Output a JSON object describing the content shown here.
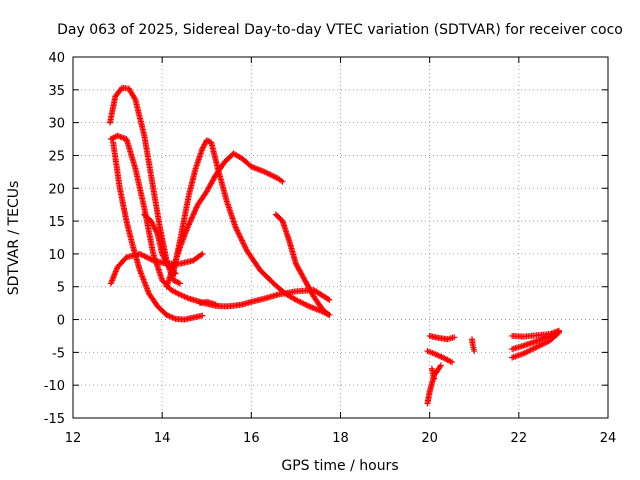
{
  "chart_data": {
    "type": "scatter",
    "title": "Day 063 of 2025, Sidereal Day-to-day VTEC variation (SDTVAR) for receiver coco",
    "xlabel": "GPS time / hours",
    "ylabel": "SDTVAR / TECUs",
    "xlim": [
      12,
      24
    ],
    "ylim": [
      -15,
      40
    ],
    "xticks": [
      12,
      14,
      16,
      18,
      20,
      22,
      24
    ],
    "yticks": [
      -15,
      -10,
      -5,
      0,
      5,
      10,
      15,
      20,
      25,
      30,
      35,
      40
    ],
    "grid": true,
    "legend": "none",
    "marker": "plus",
    "color": "#ff0000",
    "tracks": [
      {
        "x": [
          12.83,
          12.95,
          13.1,
          13.25,
          13.4,
          13.6,
          13.8,
          13.95,
          14.1,
          14.25,
          14.4
        ],
        "y": [
          30,
          34,
          35.3,
          35.2,
          33.5,
          28,
          20,
          14,
          9,
          6,
          5.5
        ]
      },
      {
        "x": [
          12.85,
          13.0,
          13.2,
          13.4,
          13.6,
          13.8,
          14.0,
          14.2,
          14.4,
          14.6,
          14.8,
          15.0,
          15.2,
          15.4,
          15.6,
          15.8,
          16.0,
          16.3,
          16.6,
          17.0,
          17.4,
          17.75
        ],
        "y": [
          27.5,
          28,
          27.5,
          23,
          17,
          10,
          6,
          4.5,
          3.8,
          3.2,
          2.8,
          2.4,
          2.1,
          2.0,
          2.1,
          2.3,
          2.7,
          3.2,
          3.8,
          4.3,
          4.5,
          3.0
        ]
      },
      {
        "x": [
          12.85,
          13.0,
          13.2,
          13.5,
          13.8,
          14.1,
          14.4,
          14.7,
          14.9
        ],
        "y": [
          5.5,
          8,
          9.5,
          10,
          9,
          8.5,
          8.5,
          9,
          10
        ]
      },
      {
        "x": [
          12.9,
          13.05,
          13.2,
          13.35,
          13.5,
          13.7,
          13.9,
          14.1,
          14.3,
          14.5,
          14.7,
          14.9
        ],
        "y": [
          27,
          20,
          15,
          11,
          7.5,
          4,
          2,
          0.7,
          0.1,
          0,
          0.3,
          0.6
        ]
      },
      {
        "x": [
          13.6,
          13.75,
          13.9,
          14.0,
          14.15,
          14.3
        ],
        "y": [
          16,
          15,
          13,
          10,
          8,
          7
        ]
      },
      {
        "x": [
          14.25,
          14.4,
          14.6,
          14.75,
          14.9,
          15.0,
          15.1,
          15.25,
          15.45,
          15.65,
          15.9,
          16.2,
          16.5,
          16.75,
          17.0,
          17.3,
          17.6,
          17.75
        ],
        "y": [
          7,
          12,
          19,
          23,
          26,
          27.3,
          27,
          23,
          18,
          14,
          10.5,
          7.5,
          5.5,
          4,
          3,
          2,
          1.2,
          0.7
        ]
      },
      {
        "x": [
          14.1,
          14.25,
          14.4,
          14.6,
          14.8,
          15.0,
          15.2,
          15.4,
          15.6,
          15.8,
          16.0,
          16.3,
          16.6,
          16.7
        ],
        "y": [
          5,
          8,
          11,
          14.5,
          17.5,
          19.5,
          22,
          24,
          25.3,
          24.5,
          23.3,
          22.5,
          21.5,
          21
        ]
      },
      {
        "x": [
          16.55,
          16.7,
          16.85,
          17.0,
          17.2,
          17.4,
          17.6,
          17.75
        ],
        "y": [
          16,
          15,
          12,
          8.5,
          6,
          3.5,
          1.5,
          0.7
        ]
      },
      {
        "x": [
          14.85,
          15.0,
          15.2
        ],
        "y": [
          2.5,
          2.7,
          2.3
        ]
      },
      {
        "x": [
          19.95,
          20.0,
          20.1,
          20.25
        ],
        "y": [
          -12.8,
          -11,
          -8.5,
          -7
        ]
      },
      {
        "x": [
          19.95,
          20.1,
          20.3,
          20.5
        ],
        "y": [
          -4.8,
          -5.2,
          -5.8,
          -6.5
        ]
      },
      {
        "x": [
          20.0,
          20.2,
          20.4,
          20.55
        ],
        "y": [
          -2.5,
          -2.8,
          -3.0,
          -2.7
        ]
      },
      {
        "x": [
          20.05,
          20.1
        ],
        "y": [
          -7.5,
          -9
        ]
      },
      {
        "x": [
          20.95,
          20.97,
          21.0
        ],
        "y": [
          -3.0,
          -4.0,
          -4.8
        ]
      },
      {
        "x": [
          21.85,
          22.1,
          22.4,
          22.7,
          22.9
        ],
        "y": [
          -2.5,
          -2.6,
          -2.4,
          -2.2,
          -1.7
        ]
      },
      {
        "x": [
          21.85,
          22.1,
          22.4,
          22.7,
          22.9
        ],
        "y": [
          -5.8,
          -5.2,
          -4.2,
          -3.2,
          -2.0
        ]
      },
      {
        "x": [
          21.85,
          22.1,
          22.4,
          22.7,
          22.9
        ],
        "y": [
          -4.5,
          -4.0,
          -3.3,
          -2.6,
          -1.8
        ]
      }
    ]
  }
}
